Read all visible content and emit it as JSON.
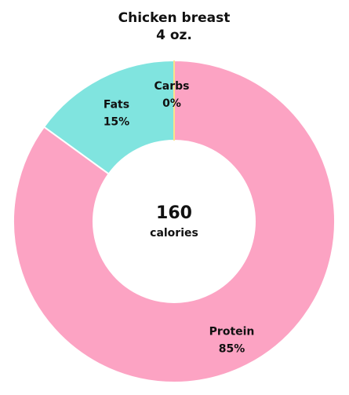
{
  "chart_data": {
    "type": "pie",
    "title": "Chicken breast",
    "subtitle": "4 oz.",
    "center_value": "160",
    "center_label": "calories",
    "slices": [
      {
        "name": "Protein",
        "value": 85,
        "value_label": "85%",
        "color": "#fca3c3"
      },
      {
        "name": "Fats",
        "value": 15,
        "value_label": "15%",
        "color": "#80e4df"
      },
      {
        "name": "Carbs",
        "value": 0,
        "value_label": "0%",
        "color": "#fce38a"
      }
    ]
  }
}
